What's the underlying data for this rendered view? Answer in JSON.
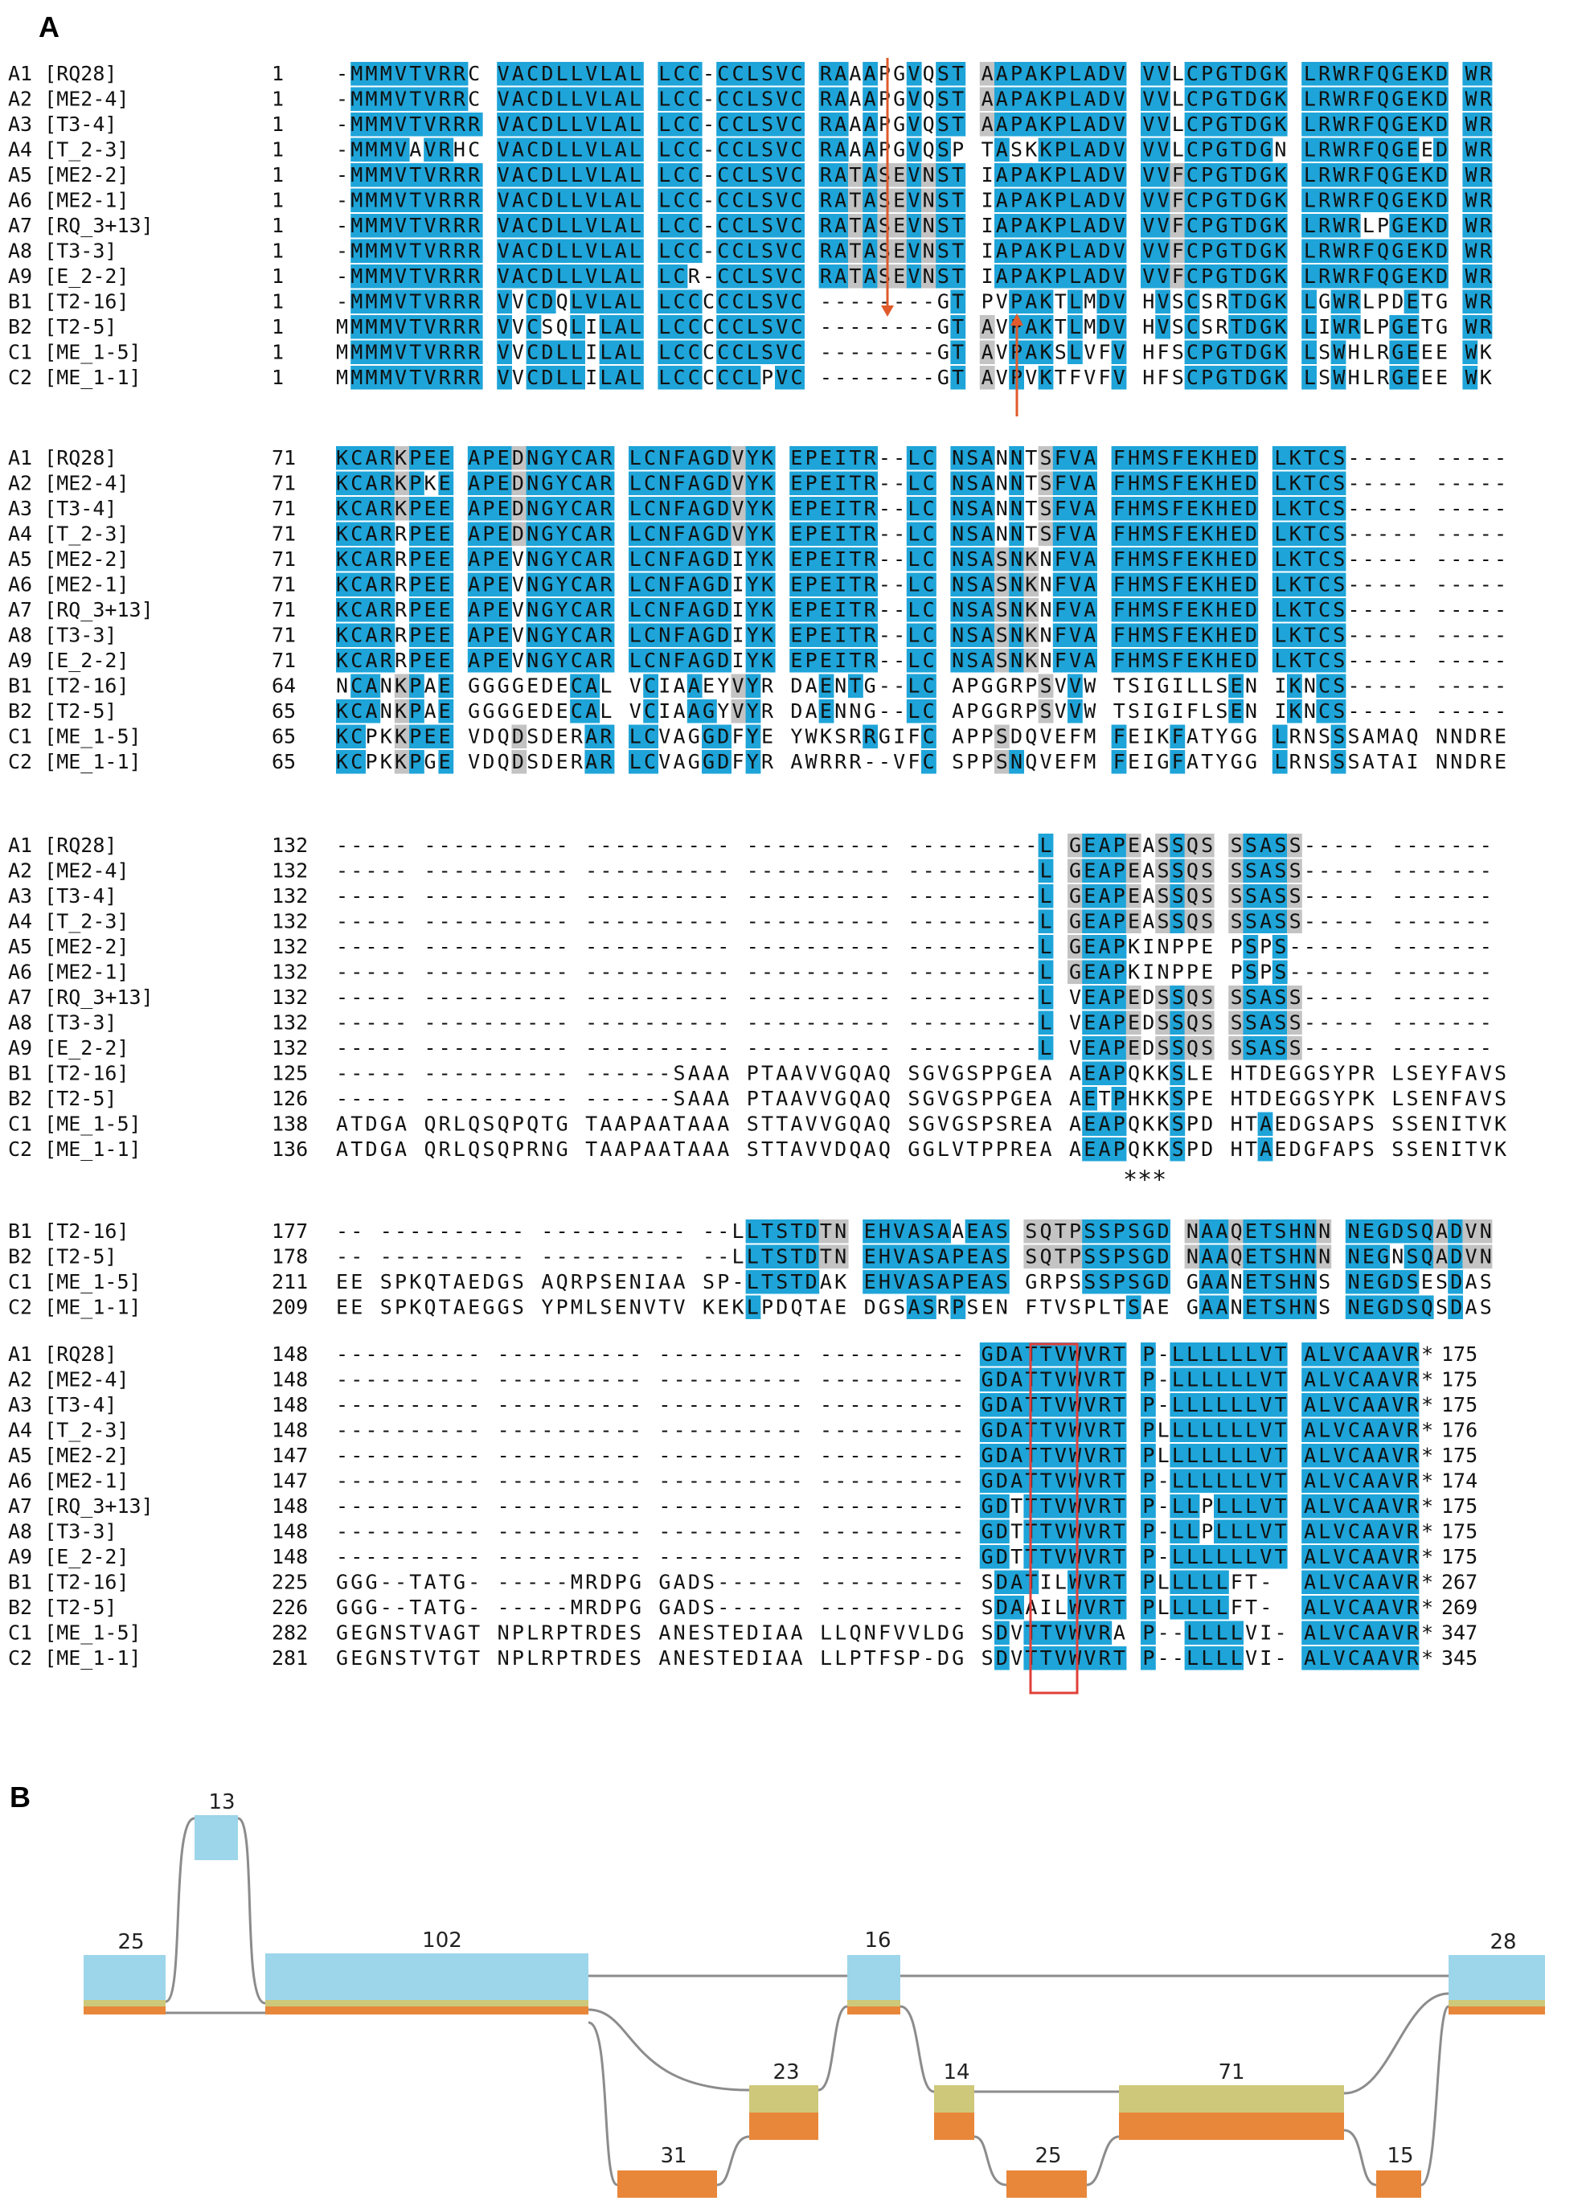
{
  "panel_a": {
    "label": "A",
    "blocks": [
      {
        "id": "block-1",
        "rows": [
          {
            "name": "A1 [RQ28]",
            "start": "1",
            "seq": "-MMMVTVRRC VACDLLVLAL LCC-CCLSVC RAAAPGVQST AAPAKPLADV VVLCPGTDGK LRWRFQGEKD WR",
            "end": ""
          },
          {
            "name": "A2 [ME2-4]",
            "start": "1",
            "seq": "-MMMVTVRRC VACDLLVLAL LCC-CCLSVC RAAAPGVQST AAPAKPLADV VVLCPGTDGK LRWRFQGEKD WR",
            "end": ""
          },
          {
            "name": "A3 [T3-4]",
            "start": "1",
            "seq": "-MMMVTVRRR VACDLLVLAL LCC-CCLSVC RAAAPGVQST AAPAKPLADV VVLCPGTDGK LRWRFQGEKD WR",
            "end": ""
          },
          {
            "name": "A4 [T_2-3]",
            "start": "1",
            "seq": "-MMMVAVRHC VACDLLVLAL LCC-CCLSVC RAAAPGVQSP TASKKPLADV VVLCPGTDGN LRWRFQGEED WR",
            "end": ""
          },
          {
            "name": "A5 [ME2-2]",
            "start": "1",
            "seq": "-MMMVTVRRR VACDLLVLAL LCC-CCLSVC RATASEVNST IAPAKPLADV VVFCPGTDGK LRWRFQGEKD WR",
            "end": ""
          },
          {
            "name": "A6 [ME2-1]",
            "start": "1",
            "seq": "-MMMVTVRRR VACDLLVLAL LCC-CCLSVC RATASEVNST IAPAKPLADV VVFCPGTDGK LRWRFQGEKD WR",
            "end": ""
          },
          {
            "name": "A7 [RQ_3+13]",
            "start": "1",
            "seq": "-MMMVTVRRR VACDLLVLAL LCC-CCLSVC RATASEVNST IAPAKPLADV VVFCPGTDGK LRWRLPGEKD WR",
            "end": ""
          },
          {
            "name": "A8 [T3-3]",
            "start": "1",
            "seq": "-MMMVTVRRR VACDLLVLAL LCC-CCLSVC RATASEVNST IAPAKPLADV VVFCPGTDGK LRWRFQGEKD WR",
            "end": ""
          },
          {
            "name": "A9 [E_2-2]",
            "start": "1",
            "seq": "-MMMVTVRRR VACDLLVLAL LCR-CCLSVC RATASEVNST IAPAKPLADV VVFCPGTDGK LRWRFQGEKD WR",
            "end": ""
          },
          {
            "name": "B1 [T2-16]",
            "start": "1",
            "seq": "-MMMVTVRRR VVCDQLVLAL LCCCCCLSVC --------GT PVPAKTLMDV HVSCSRTDGK LGWRLPDETG WR",
            "end": ""
          },
          {
            "name": "B2 [T2-5]",
            "start": "1",
            "seq": "MMMMVTVRRR VVCSQLILAL LCCCCCLSVC --------GT AVPAKTLMDV HVSCSRTDGK LIWRLPGETG WR",
            "end": ""
          },
          {
            "name": "C1 [ME_1-5]",
            "start": "1",
            "seq": "MMMMVTVRRR VVCDLLILAL LCCCCCLSVC --------GT AVPAKSLVFV HFSCPGTDGK LSWHLRGEEE WK",
            "end": ""
          },
          {
            "name": "C2 [ME_1-1]",
            "start": "1",
            "seq": "MMMMVTVRRR VVCDLLILAL LCCCCCLPVC --------GT AVPVKTFVFV HFSCPGTDGK LSWHLRGEEE WK",
            "end": ""
          }
        ]
      },
      {
        "id": "block-2",
        "rows": [
          {
            "name": "A1 [RQ28]",
            "start": "71",
            "seq": "KCARKPEE APEDNGYCAR LCNFAGDVYK EPEITR--LC NSANNTSFVA FHMSFEKHED LKTCS----- -----",
            "end": ""
          },
          {
            "name": "A2 [ME2-4]",
            "start": "71",
            "seq": "KCARKPKE APEDNGYCAR LCNFAGDVYK EPEITR--LC NSANNTSFVA FHMSFEKHED LKTCS----- -----",
            "end": ""
          },
          {
            "name": "A3 [T3-4]",
            "start": "71",
            "seq": "KCARKPEE APEDNGYCAR LCNFAGDVYK EPEITR--LC NSANNTSFVA FHMSFEKHED LKTCS----- -----",
            "end": ""
          },
          {
            "name": "A4 [T_2-3]",
            "start": "71",
            "seq": "KCARRPEE APEDNGYCAR LCNFAGDVYK EPEITR--LC NSANNTSFVA FHMSFEKHED LKTCS----- -----",
            "end": ""
          },
          {
            "name": "A5 [ME2-2]",
            "start": "71",
            "seq": "KCARRPEE APEVNGYCAR LCNFAGDIYK EPEITR--LC NSASNKNFVA FHMSFEKHED LKTCS----- -----",
            "end": ""
          },
          {
            "name": "A6 [ME2-1]",
            "start": "71",
            "seq": "KCARRPEE APEVNGYCAR LCNFAGDIYK EPEITR--LC NSASNKNFVA FHMSFEKHED LKTCS----- -----",
            "end": ""
          },
          {
            "name": "A7 [RQ_3+13]",
            "start": "71",
            "seq": "KCARRPEE APEVNGYCAR LCNFAGDIYK EPEITR--LC NSASNKNFVA FHMSFEKHED LKTCS----- -----",
            "end": ""
          },
          {
            "name": "A8 [T3-3]",
            "start": "71",
            "seq": "KCARRPEE APEVNGYCAR LCNFAGDIYK EPEITR--LC NSASNKNFVA FHMSFEKHED LKTCS----- -----",
            "end": ""
          },
          {
            "name": "A9 [E_2-2]",
            "start": "71",
            "seq": "KCARRPEE APEVNGYCAR LCNFAGDIYK EPEITR--LC NSASNKNFVA FHMSFEKHED LKTCS----- -----",
            "end": ""
          },
          {
            "name": "B1 [T2-16]",
            "start": "64",
            "seq": "NCANKPAE GGGGEDECAL VCIAAEYVYR DAENTG--LC APGGRPSVVW TSIGILLSEN IKNCS----- -----",
            "end": ""
          },
          {
            "name": "B2 [T2-5]",
            "start": "65",
            "seq": "KCANKPAE GGGGEDECAL VCIAAGYVYR DAENNG--LC APGGRPSVVW TSIGIFLSEN IKNCS----- -----",
            "end": ""
          },
          {
            "name": "C1 [ME_1-5]",
            "start": "65",
            "seq": "KCPKKPEE VDQDSDERAR LCVAGGDFYE YWKSRRGIFC APPSDQVEFM FEIKFATYGG LRNSSSAMAQ NNDRE",
            "end": ""
          },
          {
            "name": "C2 [ME_1-1]",
            "start": "65",
            "seq": "KCPKKPGE VDQDSDERAR LCVAGGDFYR AWRRR--VFC SPPSNQVEFM FEIGFATYGG LRNSSSATAI NNDRE",
            "end": ""
          }
        ]
      },
      {
        "id": "block-3",
        "rows": [
          {
            "name": "A1 [RQ28]",
            "start": "132",
            "seq": "----- ---------- ---------- ---------- ---------L GEAPEASSQS SSASS----- -------",
            "end": ""
          },
          {
            "name": "A2 [ME2-4]",
            "start": "132",
            "seq": "----- ---------- ---------- ---------- ---------L GEAPEASSQS SSASS----- -------",
            "end": ""
          },
          {
            "name": "A3 [T3-4]",
            "start": "132",
            "seq": "----- ---------- ---------- ---------- ---------L GEAPEASSQS SSASS----- -------",
            "end": ""
          },
          {
            "name": "A4 [T_2-3]",
            "start": "132",
            "seq": "----- ---------- ---------- ---------- ---------L GEAPEASSQS SSASS----- -------",
            "end": ""
          },
          {
            "name": "A5 [ME2-2]",
            "start": "132",
            "seq": "----- ---------- ---------- ---------- ---------L GEAPKINPPE PSPS------ -------",
            "end": ""
          },
          {
            "name": "A6 [ME2-1]",
            "start": "132",
            "seq": "----- ---------- ---------- ---------- ---------L GEAPKINPPE PSPS------ -------",
            "end": ""
          },
          {
            "name": "A7 [RQ_3+13]",
            "start": "132",
            "seq": "----- ---------- ---------- ---------- ---------L VEAPEDSSQS SSASS----- -------",
            "end": ""
          },
          {
            "name": "A8 [T3-3]",
            "start": "132",
            "seq": "----- ---------- ---------- ---------- ---------L VEAPEDSSQS SSASS----- -------",
            "end": ""
          },
          {
            "name": "A9 [E_2-2]",
            "start": "132",
            "seq": "----- ---------- ---------- ---------- ---------L VEAPEDSSQS SSASS----- -------",
            "end": ""
          },
          {
            "name": "B1 [T2-16]",
            "start": "125",
            "seq": "----- ---------- ------SAAA PTAAVVGQAQ SGVGSPPGEA AEAPQKKSLE HTDEGGSYPR LSEYFAVS",
            "end": ""
          },
          {
            "name": "B2 [T2-5]",
            "start": "126",
            "seq": "----- ---------- ------SAAA PTAAVVGQAQ SGVGSPPGEA AETPHKKSPE HTDEGGSYPK LSENFAVS",
            "end": ""
          },
          {
            "name": "C1 [ME_1-5]",
            "start": "138",
            "seq": "ATDGA QRLQSQPQTG TAAPAATAAA STTAVVGQAQ SGVGSPSREA AEAPQKKSPD HTAEDGSAPS SSENITVK",
            "end": ""
          },
          {
            "name": "C2 [ME_1-1]",
            "start": "136",
            "seq": "ATDGA QRLQSQPRNG TAAPAATAAA STTAVVDQAQ GGLVTPPREA AEAPQKKSPD HTAEDGFAPS SSENITVK",
            "end": ""
          }
        ],
        "marker": "***"
      },
      {
        "id": "block-4",
        "rows": [
          {
            "name": "B1 [T2-16]",
            "start": "177",
            "seq": "-- ---------- ---------- --LLTSTDTN EHVASAAEAS SQTPSSPSGD NAAQETSHNN NEGDSQADVN",
            "end": ""
          },
          {
            "name": "B2 [T2-5]",
            "start": "178",
            "seq": "-- ---------- ---------- --LLTSTDTN EHVASAPEAS SQTPSSPSGD NAAQETSHNN NEGNSQADVN",
            "end": ""
          },
          {
            "name": "C1 [ME_1-5]",
            "start": "211",
            "seq": "EE SPKQTAEDGS AQRPSENIAA SP-LTSTDAK EHVASAPEAS GRPSSSPSGD GAANETSHNS NEGDSESDAS",
            "end": ""
          },
          {
            "name": "C2 [ME_1-1]",
            "start": "209",
            "seq": "EE SPKQTAEGGS YPMLSENVTV KEKLPDQTAE DGSASRPSEN FTVSPLTSAE GAANETSHNS NEGDSQSDAS",
            "end": ""
          }
        ]
      },
      {
        "id": "block-5",
        "rows": [
          {
            "name": "A1 [RQ28]",
            "start": "148",
            "seq": "---------- ---------- ---------- ---------- GDATTVWVRT P-LLLLLLVT ALVCAAVR*",
            "end": "175"
          },
          {
            "name": "A2 [ME2-4]",
            "start": "148",
            "seq": "---------- ---------- ---------- ---------- GDATTVWVRT P-LLLLLLVT ALVCAAVR*",
            "end": "175"
          },
          {
            "name": "A3 [T3-4]",
            "start": "148",
            "seq": "---------- ---------- ---------- ---------- GDATTVWVRT P-LLLLLLVT ALVCAAVR*",
            "end": "175"
          },
          {
            "name": "A4 [T_2-3]",
            "start": "148",
            "seq": "---------- ---------- ---------- ---------- GDATTVWVRT PLLLLLLLVT ALVCAAVR*",
            "end": "176"
          },
          {
            "name": "A5 [ME2-2]",
            "start": "147",
            "seq": "---------- ---------- ---------- ---------- GDATTVWVRT PLLLLLLLVT ALVCAAVR*",
            "end": "175"
          },
          {
            "name": "A6 [ME2-1]",
            "start": "147",
            "seq": "---------- ---------- ---------- ---------- GDATTVWVRT P-LLLLLLVT ALVCAAVR*",
            "end": "174"
          },
          {
            "name": "A7 [RQ_3+13]",
            "start": "148",
            "seq": "---------- ---------- ---------- ---------- GDTTTVWVRT P-LLPLLLVT ALVCAAVR*",
            "end": "175"
          },
          {
            "name": "A8 [T3-3]",
            "start": "148",
            "seq": "---------- ---------- ---------- ---------- GDTTTVWVRT P-LLPLLLVT ALVCAAVR*",
            "end": "175"
          },
          {
            "name": "A9 [E_2-2]",
            "start": "148",
            "seq": "---------- ---------- ---------- ---------- GDTTTVWVRT P-LLLLLLVT ALVCAAVR*",
            "end": "175"
          },
          {
            "name": "B1 [T2-16]",
            "start": "225",
            "seq": "GGG--TATG- -----MRDPG GADS------ ---------- SDATILWVRT PLLLLLFT-  ALVCAAVR*",
            "end": "267"
          },
          {
            "name": "B2 [T2-5]",
            "start": "226",
            "seq": "GGG--TATG- -----MRDPG GADS------ ---------- SDAAILWVRT PLLLLLFT-  ALVCAAVR*",
            "end": "269"
          },
          {
            "name": "C1 [ME_1-5]",
            "start": "282",
            "seq": "GEGNSTVAGT NPLRPTRDES ANESTEDIAA LLQNFVVLDG SDVTTVWVRA P--LLLLVI- ALVCAAVR*",
            "end": "347"
          },
          {
            "name": "C2 [ME_1-1]",
            "start": "281",
            "seq": "GEGNSTVTGT NPLRPTRDES ANESTEDIAA LLPTFSP-DG SDVTTVWVRT P--LLLLVI- ALVCAAVR*",
            "end": "345"
          }
        ]
      }
    ]
  },
  "panel_b": {
    "label": "B",
    "exons": [
      {
        "label": "13"
      },
      {
        "label": "25"
      },
      {
        "label": "102"
      },
      {
        "label": "16"
      },
      {
        "label": "28"
      },
      {
        "label": "23"
      },
      {
        "label": "31"
      },
      {
        "label": "14"
      },
      {
        "label": "71"
      },
      {
        "label": "25"
      },
      {
        "label": "15"
      }
    ]
  },
  "colors": {
    "identity_blue": "#1EA4D8",
    "similar_gray": "#C3C3C3",
    "exon_light_blue": "#9DD5EA",
    "exon_olive": "#CEC87A",
    "exon_orange": "#E8873A",
    "arrow_red": "#E05A2B",
    "box_red": "#E0403A",
    "connector_gray": "#8C8C8C"
  }
}
